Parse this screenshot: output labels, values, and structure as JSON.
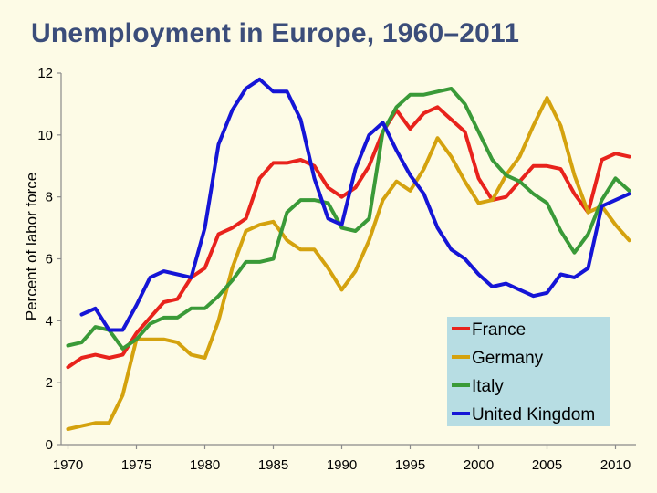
{
  "title": "Unemployment in Europe, 1960–2011",
  "chart_data": {
    "type": "line",
    "ylabel": "Percent of labor force",
    "xlabel": "",
    "xlim": [
      1969.5,
      2011.5
    ],
    "ylim": [
      0,
      12
    ],
    "x_ticks": [
      1970,
      1975,
      1980,
      1985,
      1990,
      1995,
      2000,
      2005,
      2010
    ],
    "y_ticks": [
      0,
      2,
      4,
      6,
      8,
      10,
      12
    ],
    "legend_position": "bottom-right",
    "series": [
      {
        "name": "France",
        "color": "#e8231c",
        "x": [
          1970,
          1971,
          1972,
          1973,
          1974,
          1975,
          1976,
          1977,
          1978,
          1979,
          1980,
          1981,
          1982,
          1983,
          1984,
          1985,
          1986,
          1987,
          1988,
          1989,
          1990,
          1991,
          1992,
          1993,
          1994,
          1995,
          1996,
          1997,
          1998,
          1999,
          2000,
          2001,
          2002,
          2003,
          2004,
          2005,
          2006,
          2007,
          2008,
          2009,
          2010,
          2011
        ],
        "values": [
          2.5,
          2.8,
          2.9,
          2.8,
          2.9,
          3.6,
          4.1,
          4.6,
          4.7,
          5.4,
          5.7,
          6.8,
          7.0,
          7.3,
          8.6,
          9.1,
          9.1,
          9.2,
          9.0,
          8.3,
          8.0,
          8.3,
          9.0,
          10.1,
          10.8,
          10.2,
          10.7,
          10.9,
          10.5,
          10.1,
          8.6,
          7.9,
          8.0,
          8.5,
          9.0,
          9.0,
          8.9,
          8.1,
          7.5,
          9.2,
          9.4,
          9.3
        ]
      },
      {
        "name": "Germany",
        "color": "#d4a20e",
        "x": [
          1970,
          1971,
          1972,
          1973,
          1974,
          1975,
          1976,
          1977,
          1978,
          1979,
          1980,
          1981,
          1982,
          1983,
          1984,
          1985,
          1986,
          1987,
          1988,
          1989,
          1990,
          1991,
          1992,
          1993,
          1994,
          1995,
          1996,
          1997,
          1998,
          1999,
          2000,
          2001,
          2002,
          2003,
          2004,
          2005,
          2006,
          2007,
          2008,
          2009,
          2010,
          2011
        ],
        "values": [
          0.5,
          0.6,
          0.7,
          0.7,
          1.6,
          3.4,
          3.4,
          3.4,
          3.3,
          2.9,
          2.8,
          4.0,
          5.7,
          6.9,
          7.1,
          7.2,
          6.6,
          6.3,
          6.3,
          5.7,
          5.0,
          5.6,
          6.6,
          7.9,
          8.5,
          8.2,
          8.9,
          9.9,
          9.3,
          8.5,
          7.8,
          7.9,
          8.7,
          9.3,
          10.3,
          11.2,
          10.3,
          8.7,
          7.5,
          7.7,
          7.1,
          6.6
        ]
      },
      {
        "name": "Italy",
        "color": "#3a9a38",
        "x": [
          1970,
          1971,
          1972,
          1973,
          1974,
          1975,
          1976,
          1977,
          1978,
          1979,
          1980,
          1981,
          1982,
          1983,
          1984,
          1985,
          1986,
          1987,
          1988,
          1989,
          1990,
          1991,
          1992,
          1993,
          1994,
          1995,
          1996,
          1997,
          1998,
          1999,
          2000,
          2001,
          2002,
          2003,
          2004,
          2005,
          2006,
          2007,
          2008,
          2009,
          2010,
          2011
        ],
        "values": [
          3.2,
          3.3,
          3.8,
          3.7,
          3.1,
          3.4,
          3.9,
          4.1,
          4.1,
          4.4,
          4.4,
          4.8,
          5.3,
          5.9,
          5.9,
          6.0,
          7.5,
          7.9,
          7.9,
          7.8,
          7.0,
          6.9,
          7.3,
          10.1,
          10.9,
          11.3,
          11.3,
          11.4,
          11.5,
          11.0,
          10.1,
          9.2,
          8.7,
          8.5,
          8.1,
          7.8,
          6.9,
          6.2,
          6.8,
          7.9,
          8.6,
          8.2
        ]
      },
      {
        "name": "United Kingdom",
        "color": "#1515d6",
        "x": [
          1971,
          1972,
          1973,
          1974,
          1975,
          1976,
          1977,
          1978,
          1979,
          1980,
          1981,
          1982,
          1983,
          1984,
          1985,
          1986,
          1987,
          1988,
          1989,
          1990,
          1991,
          1992,
          1993,
          1994,
          1995,
          1996,
          1997,
          1998,
          1999,
          2000,
          2001,
          2002,
          2003,
          2004,
          2005,
          2006,
          2007,
          2008,
          2009,
          2010,
          2011
        ],
        "values": [
          4.2,
          4.4,
          3.7,
          3.7,
          4.5,
          5.4,
          5.6,
          5.5,
          5.4,
          7.0,
          9.7,
          10.8,
          11.5,
          11.8,
          11.4,
          11.4,
          10.5,
          8.6,
          7.3,
          7.1,
          8.9,
          10.0,
          10.4,
          9.5,
          8.7,
          8.1,
          7.0,
          6.3,
          6.0,
          5.5,
          5.1,
          5.2,
          5.0,
          4.8,
          4.9,
          5.5,
          5.4,
          5.7,
          7.7,
          7.9,
          8.1
        ]
      }
    ]
  }
}
